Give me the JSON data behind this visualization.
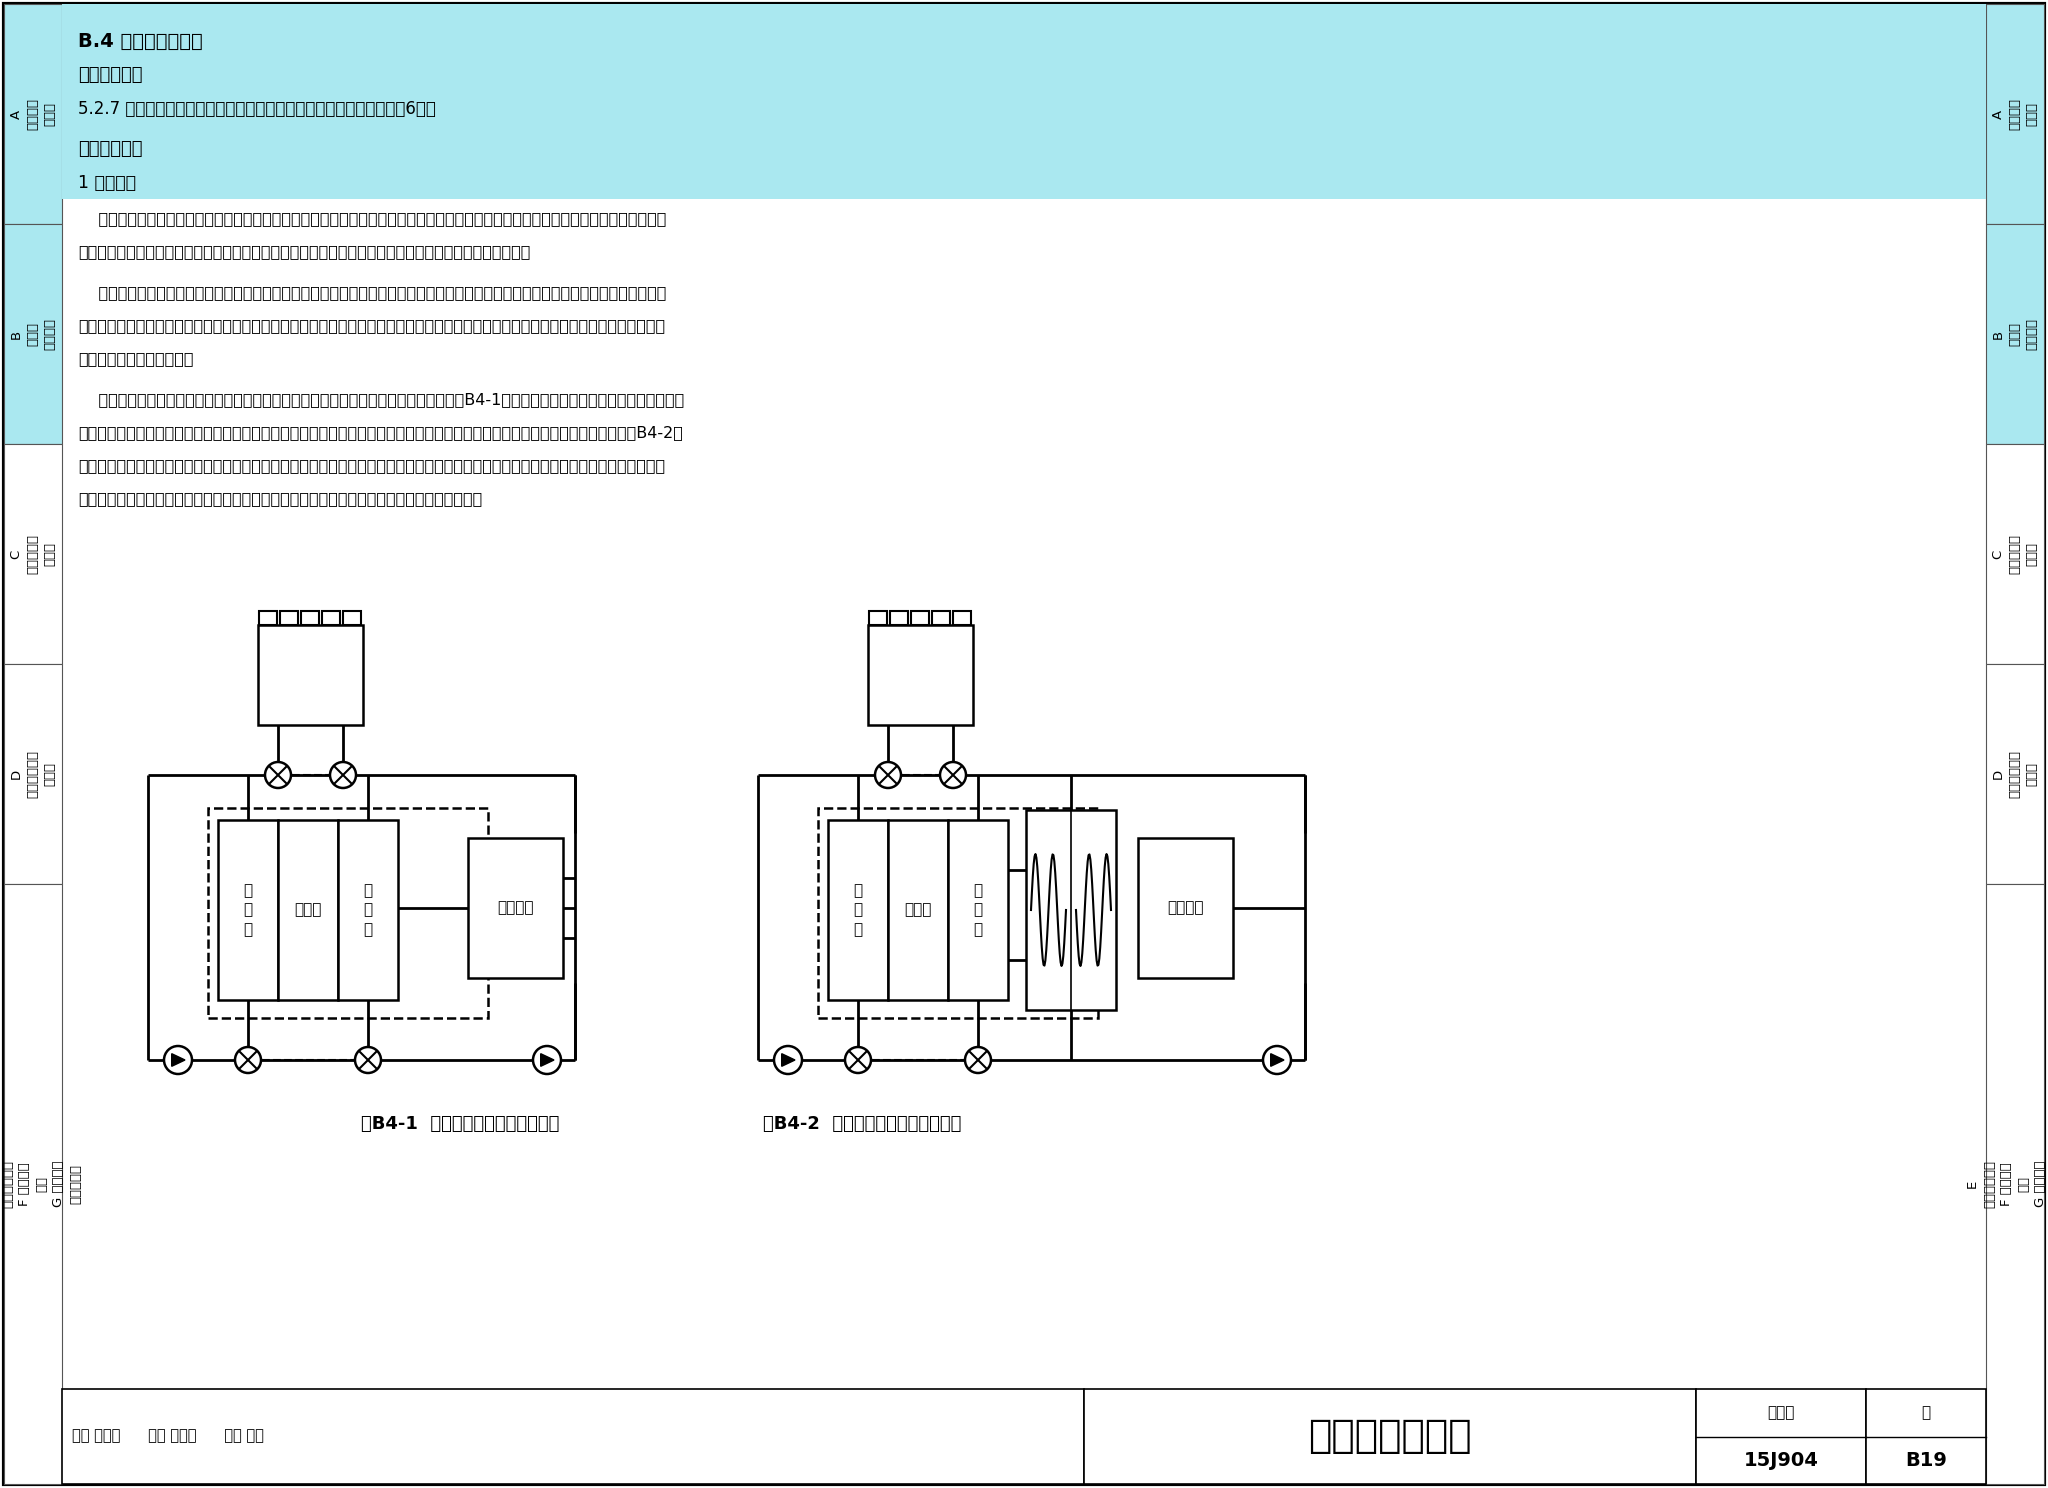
{
  "bg_color": "#ffffff",
  "header_bg": "#aae8f0",
  "sidebar_A_bg": "#aae8f0",
  "sidebar_B_bg": "#aae8f0",
  "sidebar_other_bg": "#ffffff",
  "section_title": "B.4 过渡季节能措施",
  "clause_label": "【对应条文】",
  "clause_text": "5.2.7 采取措施降低过渡季节供暖、通风与空调系统能耗，评分分值为6分。",
  "tech_label": "【技术要点】",
  "tech_sub": "1 技术概要",
  "para1_lines": [
    "    公共建筑的内区由于无法开窗通风，在过渡季往往也需供冷。若能充分利用全新风供冷、冷却塔免费供冷等技术，则可尽量减少冷机的",
    "开启时间，节省全年运行能耗。这类技术对于过渡季或冬季仍需供冷的商场、酒店等建筑，节能效果显著。"
  ],
  "para2_lines": [
    "    过渡季全新风技术的原理简单，技术易实现。但为了实现全新风，需加大新风管径和新风口尺寸，对机房面积和层高的要求更高，较大",
    "面积的新风口百叶也可能与建筑师对外立面的设计要求冲突。因此，在设计阶段，机电专业应尽早将此部分的要求反馈给建筑师，预留足够",
    "的机房空间和新风口面积。"
  ],
  "para3_lines": [
    "    冷却塔免费供冷技术可分为直接供冷和间接供冷两种形式。其中，直接供冷方式（如图B4-1所示）通过阀门转换，将冷却塔出水直接供",
    "入原冷冻水系统和用户末端，形式简单，供冷效率高；但冷却水易受大气等污染，造成水系统管路腐蚀或结垢。间接供冷方式（如图B4-2所",
    "示）通过阀门转换，经换热器冷却冷冻水系统，供冷效率不如直接供冷系统，但可保证冷冻水系统不受污染，可避免各换热设备和切换回正",
    "常供冷模式时冷水机组蒸发器的换热能力恶化。因此，目前间接换热系统在工程中应用更普遍。"
  ],
  "fig1_caption": "图B4-1  直接式免费供冷系统示意图",
  "fig2_caption": "图B4-2  间接式免费供冷系统示意图",
  "footer_title": "过渡季节能措施",
  "footer_atlas_label": "图集号",
  "footer_atlas_val": "15J904",
  "footer_page_label": "页",
  "footer_page_val": "B19",
  "footer_row1": "审核 李晓锋      校对 冯堂堂      设计 李俊",
  "sidebar_labels": [
    "A\n室外环境\n节地与",
    "B\n节能与\n能源利用",
    "C\n水资源利用\n节水与",
    "D\n材料资源利用\n节材与",
    "E\n室内环境质量\nF 典型案例\n分析\nG 绿色建筑\n评分自评表"
  ],
  "sidebar_highlight": [
    0,
    1
  ]
}
